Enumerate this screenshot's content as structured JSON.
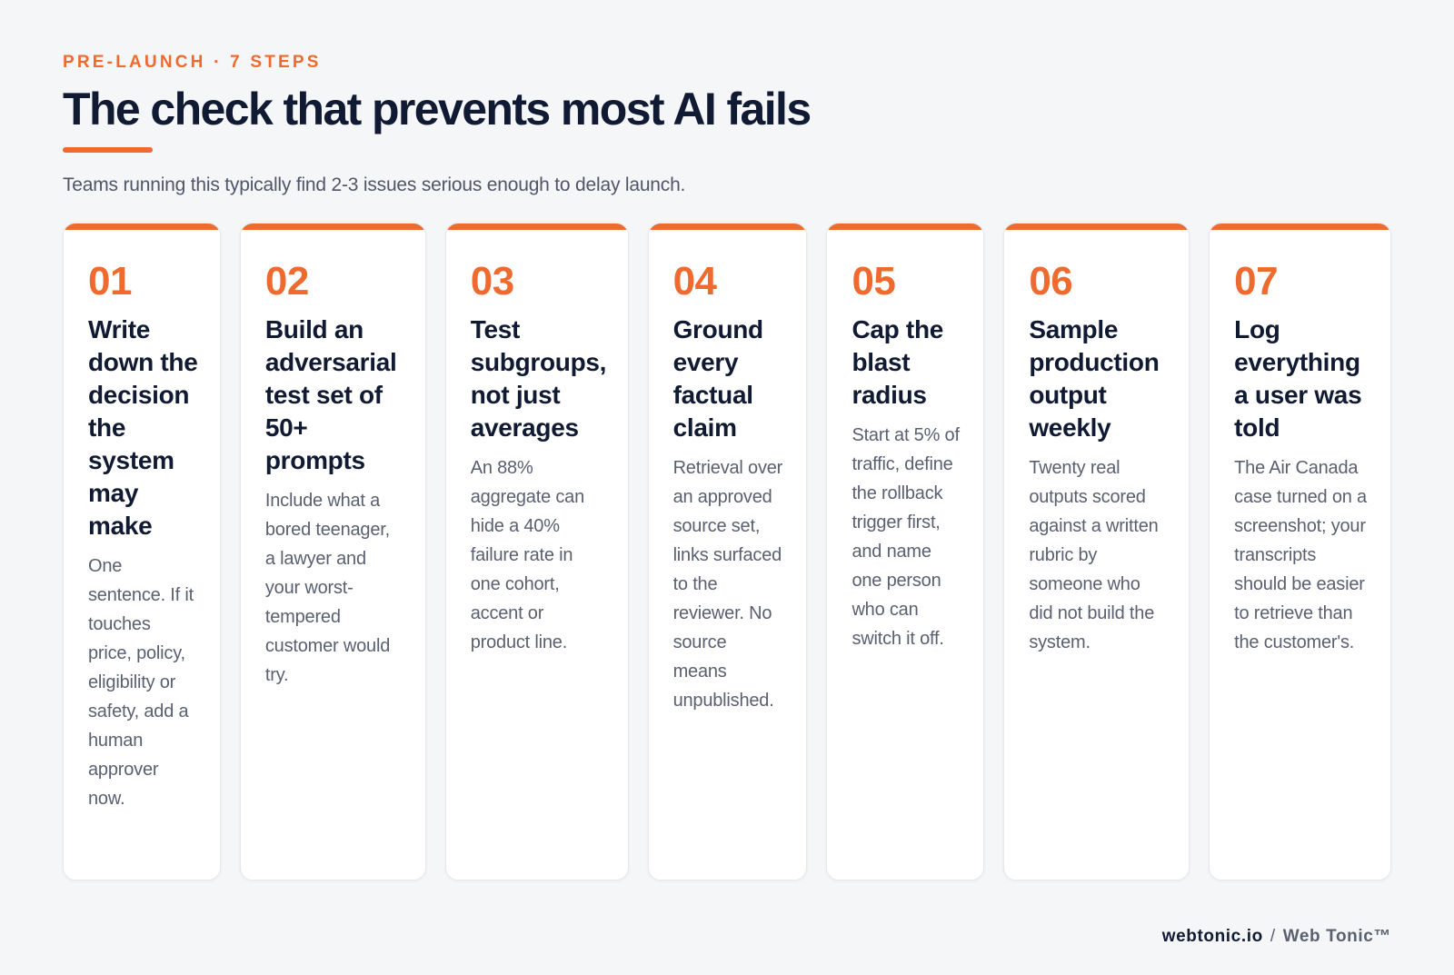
{
  "header": {
    "eyebrow": "PRE-LAUNCH · 7 STEPS",
    "title": "The check that prevents most AI fails",
    "subtitle": "Teams running this typically find 2-3 issues serious enough to delay launch."
  },
  "steps": [
    {
      "number": "01",
      "title": "Write down the decision the system may make",
      "body": "One sentence. If it touches price, policy, eligibility or safety, add a human approver now."
    },
    {
      "number": "02",
      "title": "Build an adversarial test set of 50+ prompts",
      "body": "Include what a bored teenager, a lawyer and your worst-tempered customer would try."
    },
    {
      "number": "03",
      "title": "Test subgroups, not just averages",
      "body": "An 88% aggregate can hide a 40% failure rate in one cohort, accent or product line."
    },
    {
      "number": "04",
      "title": "Ground every factual claim",
      "body": "Retrieval over an approved source set, links surfaced to the reviewer. No source means unpublished."
    },
    {
      "number": "05",
      "title": "Cap the blast radius",
      "body": "Start at 5% of traffic, define the rollback trigger first, and name one person who can switch it off."
    },
    {
      "number": "06",
      "title": "Sample production output weekly",
      "body": "Twenty real outputs scored against a written rubric by someone who did not build the system."
    },
    {
      "number": "07",
      "title": "Log everything a user was told",
      "body": "The Air Canada case turned on a screenshot; your transcripts should be easier to retrieve than the customer's."
    }
  ],
  "footer": {
    "site": "webtonic.io",
    "separator": "/",
    "brand": "Web Tonic™"
  },
  "colors": {
    "accent": "#ee6a2f",
    "heading": "#111a33",
    "body": "#5a6070",
    "background": "#f5f6f8"
  }
}
